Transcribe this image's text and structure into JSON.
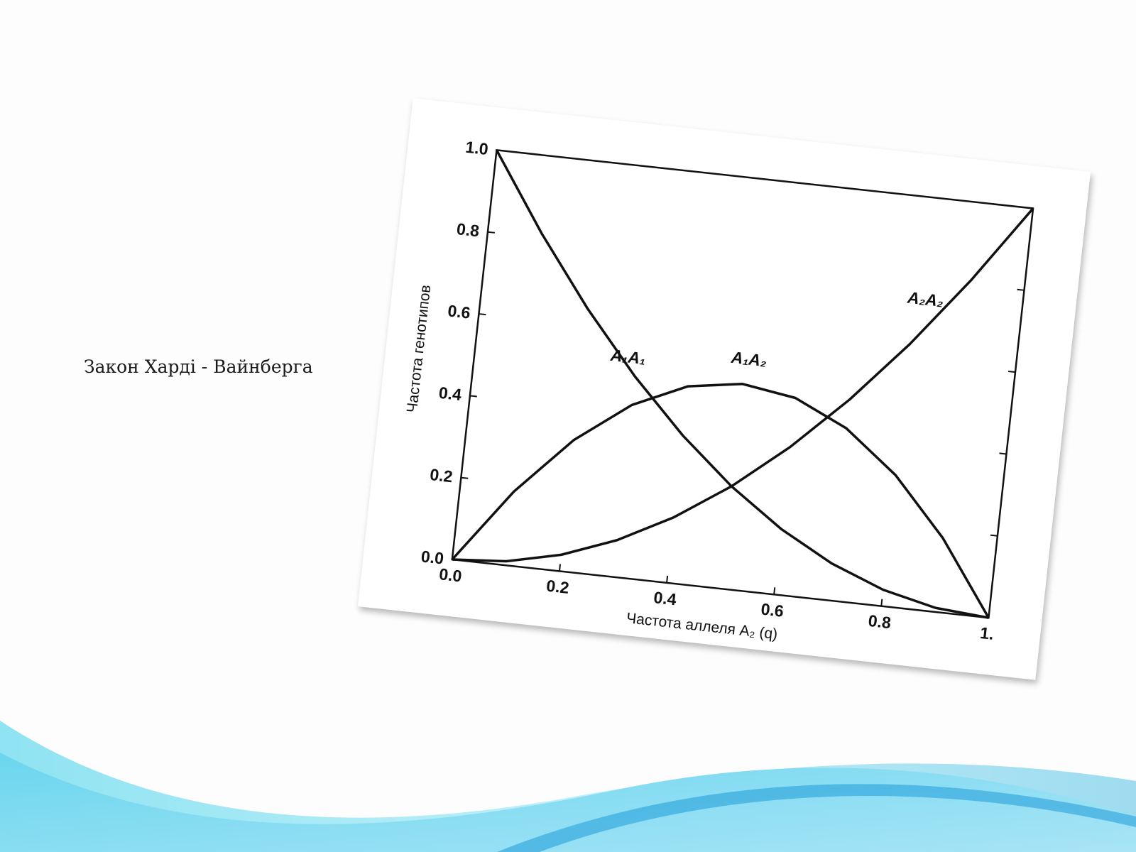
{
  "slide": {
    "caption": "Закон Харді - Вайнберга",
    "colors": {
      "background": "#fdfdfd",
      "wave_light": "#aee9f5",
      "wave_mid": "#5cd0ea",
      "wave_dark": "#1e9bd8"
    }
  },
  "chart_data": {
    "type": "line",
    "title": "",
    "xlabel": "Частота аллеля A₂ (q)",
    "ylabel": "Частота генотипов",
    "xlim": [
      0,
      1
    ],
    "ylim": [
      0,
      1
    ],
    "x_ticks": [
      "0.0",
      "0.2",
      "0.4",
      "0.6",
      "0.8",
      "1."
    ],
    "y_ticks": [
      "0.0",
      "0.2",
      "0.4",
      "0.6",
      "0.8",
      "1.0"
    ],
    "grid": false,
    "legend": "inline labels",
    "x": [
      0.0,
      0.1,
      0.2,
      0.3,
      0.4,
      0.5,
      0.6,
      0.7,
      0.8,
      0.9,
      1.0
    ],
    "series": [
      {
        "name": "A₁A₁",
        "values": [
          1.0,
          0.81,
          0.64,
          0.49,
          0.36,
          0.25,
          0.16,
          0.09,
          0.04,
          0.01,
          0.0
        ]
      },
      {
        "name": "A₁A₂",
        "values": [
          0.0,
          0.18,
          0.32,
          0.42,
          0.48,
          0.5,
          0.48,
          0.42,
          0.32,
          0.18,
          0.0
        ]
      },
      {
        "name": "A₂A₂",
        "values": [
          0.0,
          0.01,
          0.04,
          0.09,
          0.16,
          0.25,
          0.36,
          0.49,
          0.64,
          0.81,
          1.0
        ]
      }
    ]
  }
}
